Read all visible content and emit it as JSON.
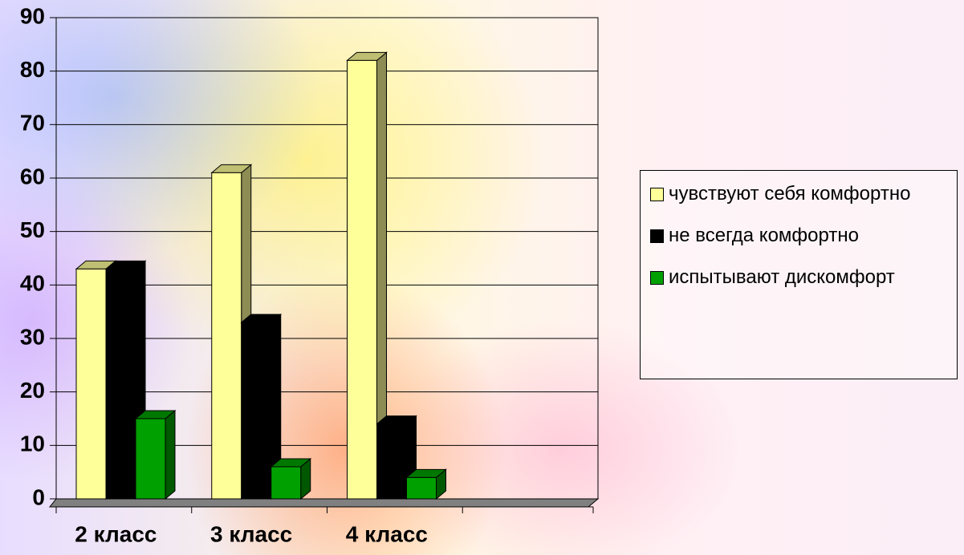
{
  "chart_data": {
    "type": "bar3d",
    "categories": [
      "2 класс",
      "3 класс",
      "4 класс",
      null
    ],
    "series": [
      {
        "name": "чувствуют себя комфортно",
        "color": "#ffff99",
        "values": [
          43,
          61,
          82,
          null
        ]
      },
      {
        "name": "не всегда комфортно",
        "color": "#000000",
        "values": [
          43,
          33,
          14,
          null
        ]
      },
      {
        "name": "испытывают дискомфорт",
        "color": "#00a000",
        "values": [
          15,
          6,
          4,
          null
        ]
      }
    ],
    "ylim": [
      0,
      90
    ],
    "yticks": [
      0,
      10,
      20,
      30,
      40,
      50,
      60,
      70,
      80,
      90
    ],
    "grid": true,
    "legend": "right"
  }
}
